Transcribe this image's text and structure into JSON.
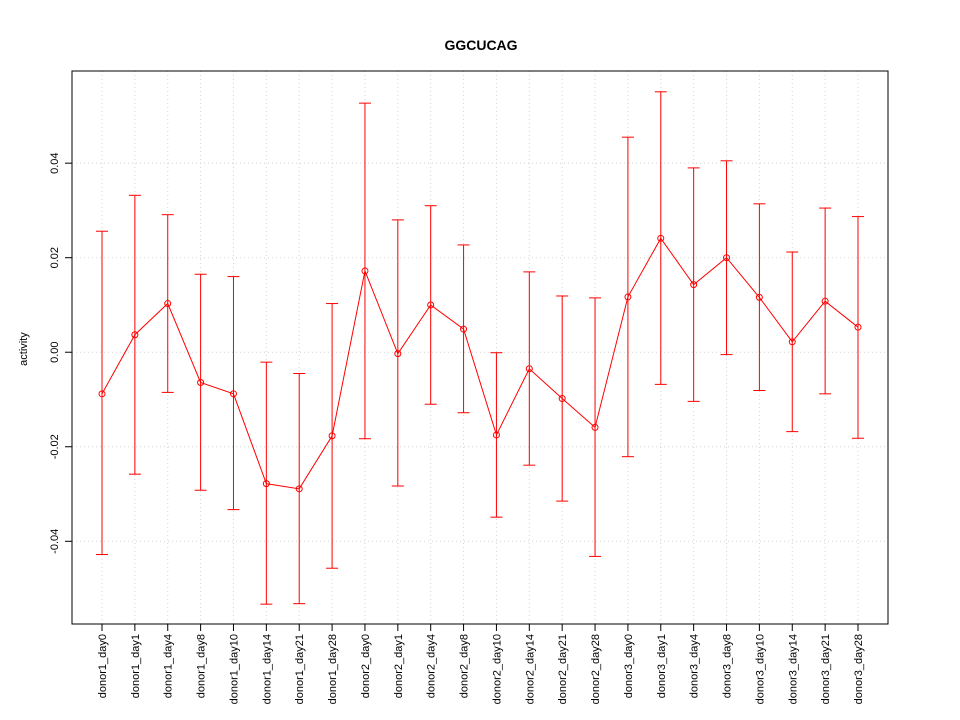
{
  "chart_data": {
    "type": "line",
    "title": "GGCUCAG",
    "xlabel": "",
    "ylabel": "activity",
    "ylim": [
      -0.0575,
      0.0595
    ],
    "y_ticks": [
      -0.04,
      -0.02,
      0.0,
      0.02,
      0.04
    ],
    "y_tick_labels": [
      "-0.04",
      "-0.02",
      "0.00",
      "0.02",
      "0.04"
    ],
    "grid": true,
    "series_color": "#ff0000",
    "grid_color": "#d3d3d3",
    "categories": [
      "donor1_day0",
      "donor1_day1",
      "donor1_day4",
      "donor1_day8",
      "donor1_day10",
      "donor1_day14",
      "donor1_day21",
      "donor1_day28",
      "donor2_day0",
      "donor2_day1",
      "donor2_day4",
      "donor2_day8",
      "donor2_day10",
      "donor2_day14",
      "donor2_day21",
      "donor2_day28",
      "donor3_day0",
      "donor3_day1",
      "donor3_day4",
      "donor3_day8",
      "donor3_day10",
      "donor3_day14",
      "donor3_day21",
      "donor3_day28"
    ],
    "values": [
      -0.0088,
      0.0037,
      0.0103,
      -0.0064,
      -0.0088,
      -0.0278,
      -0.0289,
      -0.0177,
      0.0172,
      -0.0003,
      0.01,
      0.0049,
      -0.0175,
      -0.0035,
      -0.0098,
      -0.0159,
      0.0117,
      0.0241,
      0.0143,
      0.02,
      0.0116,
      0.0022,
      0.0108,
      0.0053
    ],
    "upper": [
      0.0256,
      0.0332,
      0.0291,
      0.0165,
      0.016,
      -0.0021,
      -0.0045,
      0.0103,
      0.0527,
      0.028,
      0.031,
      0.0227,
      -0.0001,
      0.017,
      0.0119,
      0.0115,
      0.0455,
      0.0551,
      0.039,
      0.0405,
      0.0314,
      0.0212,
      0.0305,
      0.0287
    ],
    "lower": [
      -0.0428,
      -0.0258,
      -0.0085,
      -0.0292,
      -0.0333,
      -0.0533,
      -0.0532,
      -0.0457,
      -0.0183,
      -0.0283,
      -0.011,
      -0.0128,
      -0.0349,
      -0.0239,
      -0.0315,
      -0.0432,
      -0.0221,
      -0.0068,
      -0.0104,
      -0.0005,
      -0.0081,
      -0.0168,
      -0.0088,
      -0.0182
    ]
  }
}
